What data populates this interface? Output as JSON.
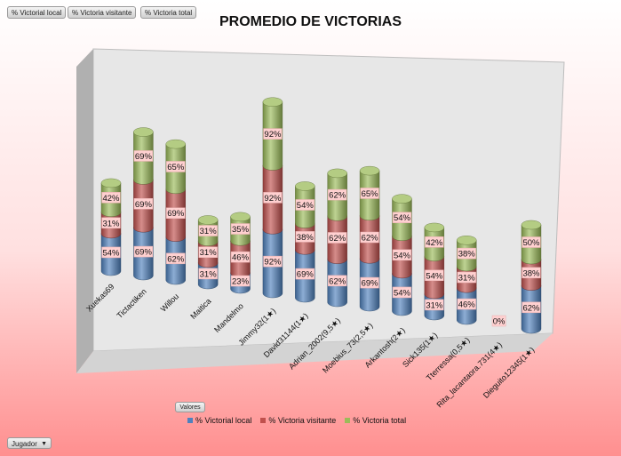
{
  "filters": {
    "local": "% Victorial local",
    "visitante": "% Victoria visitante",
    "total": "% Victoria total"
  },
  "valores_label": "Valores",
  "jugador_label": "Jugador",
  "chart_data": {
    "type": "bar",
    "stacked": true,
    "style": "3d-cylinder",
    "title": "PROMEDIO DE VICTORIAS",
    "categories": [
      "Xuekas69",
      "Tictactiken",
      "Willou",
      "Maitica",
      "Mandelmo",
      "Jimmy32(1★)",
      "David31144(1★)",
      "Adrian_2002(9,5★)",
      "Moebius_73(2,5★)",
      "Arkantosh(2★)",
      "Sick135(1★)",
      "Tterressa(0,5★)",
      "Rita_lacantaora.731(4★)",
      "Dieguito12345(1★)"
    ],
    "series": [
      {
        "name": "% Victorial local",
        "color": "#4f81bd",
        "values": [
          54,
          69,
          62,
          31,
          23,
          92,
          69,
          62,
          69,
          54,
          31,
          46,
          0,
          62
        ]
      },
      {
        "name": "% Victoria visitante",
        "color": "#c0504d",
        "values": [
          31,
          69,
          69,
          31,
          46,
          92,
          38,
          62,
          62,
          54,
          54,
          31,
          0,
          38
        ]
      },
      {
        "name": "% Victoria total",
        "color": "#9bbb59",
        "values": [
          42,
          69,
          65,
          31,
          35,
          92,
          54,
          62,
          65,
          54,
          42,
          38,
          0,
          50
        ]
      }
    ],
    "value_labels": [
      [
        "54%",
        "69%",
        "62%",
        "31%",
        "23%",
        "92%",
        "69%",
        "62%",
        "69%",
        "54%",
        "31%",
        "46%",
        "0%",
        "62%"
      ],
      [
        "31%",
        "69%",
        "69%",
        "31%",
        "46%",
        "92%",
        "38%",
        "62%",
        "62%",
        "54%",
        "54%",
        "31%",
        "",
        "38%"
      ],
      [
        "42%",
        "69%",
        "65%",
        "31%",
        "35%",
        "92%",
        "54%",
        "62%",
        "65%",
        "54%",
        "42%",
        "38%",
        "",
        "50%"
      ]
    ],
    "legend_position": "bottom",
    "grid": false
  }
}
